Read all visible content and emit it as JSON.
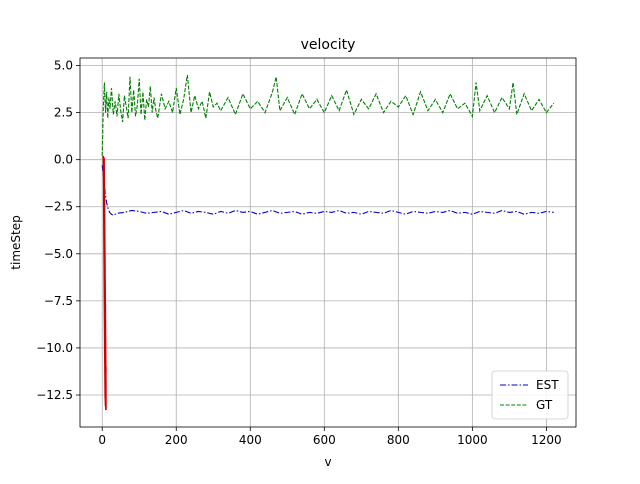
{
  "chart_data": {
    "type": "line",
    "title": "velocity",
    "xlabel": "v",
    "ylabel": "timeStep",
    "xlim": [
      -60,
      1280
    ],
    "ylim": [
      -14.2,
      5.4
    ],
    "xticks": [
      0,
      200,
      400,
      600,
      800,
      1000,
      1200
    ],
    "xtick_labels": [
      "0",
      "200",
      "400",
      "600",
      "800",
      "1000",
      "1200"
    ],
    "yticks": [
      -12.5,
      -10.0,
      -7.5,
      -5.0,
      -2.5,
      0.0,
      2.5,
      5.0
    ],
    "ytick_labels": [
      "−12.5",
      "−10.0",
      "−7.5",
      "−5.0",
      "−2.5",
      "0.0",
      "2.5",
      "5.0"
    ],
    "grid": true,
    "legend_position": "lower-right",
    "series": [
      {
        "name": "EST",
        "color": "#0000cc",
        "style": "dash-dot",
        "x": [
          0,
          4,
          8,
          12,
          16,
          20,
          25,
          30,
          40,
          60,
          80,
          100,
          120,
          140,
          160,
          180,
          200,
          220,
          240,
          260,
          280,
          300,
          320,
          340,
          360,
          380,
          400,
          420,
          440,
          460,
          480,
          500,
          520,
          540,
          560,
          580,
          600,
          620,
          640,
          660,
          680,
          700,
          720,
          740,
          760,
          780,
          800,
          820,
          840,
          860,
          880,
          900,
          920,
          940,
          960,
          980,
          1000,
          1020,
          1040,
          1060,
          1080,
          1100,
          1120,
          1140,
          1160,
          1180,
          1200,
          1220
        ],
        "y": [
          -0.3,
          -0.9,
          -1.8,
          -2.3,
          -2.6,
          -2.8,
          -2.9,
          -2.95,
          -2.85,
          -2.8,
          -2.7,
          -2.75,
          -2.85,
          -2.8,
          -2.75,
          -2.9,
          -2.8,
          -2.7,
          -2.85,
          -2.75,
          -2.8,
          -2.9,
          -2.75,
          -2.85,
          -2.7,
          -2.8,
          -2.75,
          -2.9,
          -2.8,
          -2.7,
          -2.85,
          -2.8,
          -2.75,
          -2.9,
          -2.8,
          -2.85,
          -2.75,
          -2.8,
          -2.7,
          -2.85,
          -2.8,
          -2.9,
          -2.75,
          -2.8,
          -2.85,
          -2.7,
          -2.8,
          -2.9,
          -2.75,
          -2.8,
          -2.85,
          -2.75,
          -2.8,
          -2.7,
          -2.85,
          -2.8,
          -2.9,
          -2.75,
          -2.8,
          -2.85,
          -2.7,
          -2.8,
          -2.75,
          -2.9,
          -2.8,
          -2.85,
          -2.75,
          -2.8
        ]
      },
      {
        "name": "GT",
        "color": "#008000",
        "style": "dashed",
        "x": [
          0,
          3,
          6,
          9,
          12,
          15,
          18,
          21,
          25,
          30,
          35,
          40,
          45,
          50,
          55,
          60,
          65,
          70,
          75,
          80,
          85,
          90,
          95,
          100,
          105,
          110,
          115,
          120,
          125,
          130,
          135,
          140,
          145,
          150,
          160,
          170,
          180,
          190,
          200,
          210,
          220,
          230,
          240,
          250,
          260,
          270,
          280,
          290,
          300,
          310,
          320,
          340,
          360,
          380,
          400,
          420,
          440,
          460,
          470,
          480,
          500,
          520,
          540,
          560,
          580,
          600,
          620,
          640,
          660,
          680,
          700,
          720,
          740,
          760,
          780,
          800,
          820,
          840,
          860,
          880,
          900,
          920,
          940,
          960,
          980,
          1000,
          1010,
          1020,
          1040,
          1060,
          1080,
          1100,
          1110,
          1120,
          1140,
          1160,
          1180,
          1200,
          1220
        ],
        "y": [
          0.2,
          2.8,
          4.1,
          2.5,
          3.6,
          2.2,
          3.3,
          2.7,
          3.8,
          2.4,
          3.1,
          2.3,
          3.5,
          2.6,
          2.0,
          3.4,
          2.8,
          2.2,
          4.4,
          2.5,
          3.7,
          2.3,
          2.9,
          4.3,
          2.4,
          3.6,
          2.1,
          3.2,
          2.8,
          3.9,
          2.5,
          3.3,
          2.6,
          2.2,
          3.5,
          2.7,
          3.1,
          2.5,
          3.8,
          2.4,
          3.2,
          4.5,
          2.5,
          3.4,
          2.7,
          3.1,
          2.2,
          3.6,
          2.8,
          3.0,
          2.6,
          3.3,
          2.4,
          3.5,
          2.7,
          3.1,
          2.5,
          3.6,
          4.4,
          2.6,
          3.3,
          2.4,
          3.5,
          2.7,
          3.2,
          2.5,
          3.4,
          2.6,
          3.7,
          2.4,
          3.2,
          2.7,
          3.5,
          2.5,
          3.1,
          2.8,
          3.4,
          2.4,
          3.6,
          2.6,
          3.2,
          2.5,
          3.5,
          2.7,
          3.0,
          2.3,
          4.1,
          2.6,
          3.4,
          2.5,
          3.3,
          2.7,
          4.1,
          2.4,
          3.5,
          2.6,
          3.2,
          2.5,
          3.0
        ]
      },
      {
        "color": "#d00000",
        "style": "solid",
        "x": [
          3,
          4,
          5,
          6,
          7,
          8,
          9,
          10,
          10,
          9,
          8,
          7,
          6,
          5,
          4,
          5,
          6,
          7,
          8,
          9,
          10
        ],
        "y": [
          0.2,
          -1.5,
          -3.5,
          -6.0,
          -8.5,
          -11.0,
          -12.8,
          -13.3,
          -12.0,
          -9.5,
          -7.0,
          -4.5,
          -2.0,
          0.1,
          -2.0,
          -5.0,
          -8.0,
          -10.5,
          -12.5,
          -13.1,
          -11.0
        ]
      }
    ]
  }
}
